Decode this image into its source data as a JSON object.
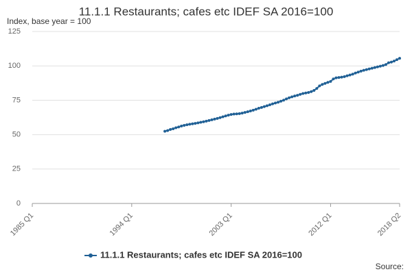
{
  "chart_data": {
    "type": "line",
    "title": "11.1.1 Restaurants; cafes etc IDEF SA 2016=100",
    "subtitle": "Index, base year = 100",
    "source": "Source:",
    "categories": [
      "1985 Q1",
      null,
      null,
      null,
      null,
      null,
      null,
      null,
      null,
      null,
      null,
      null,
      null,
      null,
      null,
      null,
      null,
      null,
      null,
      null,
      null,
      null,
      null,
      null,
      null,
      null,
      null,
      null,
      null,
      null,
      null,
      null,
      null,
      null,
      null,
      null,
      "1994 Q1",
      null,
      null,
      null,
      null,
      null,
      null,
      null,
      null,
      null,
      null,
      null,
      null,
      null,
      null,
      null,
      null,
      null,
      null,
      null,
      null,
      null,
      null,
      null,
      null,
      null,
      null,
      null,
      null,
      null,
      null,
      null,
      null,
      null,
      null,
      null,
      "2003 Q1",
      null,
      null,
      null,
      null,
      null,
      null,
      null,
      null,
      null,
      null,
      null,
      null,
      null,
      null,
      null,
      null,
      null,
      null,
      null,
      null,
      null,
      null,
      null,
      null,
      null,
      null,
      null,
      null,
      null,
      null,
      null,
      null,
      null,
      null,
      null,
      "2012 Q1",
      null,
      null,
      null,
      null,
      null,
      null,
      null,
      null,
      null,
      null,
      null,
      null,
      null,
      null,
      null,
      null,
      null,
      null,
      null,
      null,
      null,
      null,
      null,
      null,
      "2018 Q2"
    ],
    "series": [
      {
        "name": "11.1.1 Restaurants; cafes etc IDEF SA 2016=100",
        "color": "#206095",
        "values": [
          null,
          null,
          null,
          null,
          null,
          null,
          null,
          null,
          null,
          null,
          null,
          null,
          null,
          null,
          null,
          null,
          null,
          null,
          null,
          null,
          null,
          null,
          null,
          null,
          null,
          null,
          null,
          null,
          null,
          null,
          null,
          null,
          null,
          null,
          null,
          null,
          null,
          null,
          null,
          null,
          null,
          null,
          null,
          null,
          null,
          null,
          null,
          null,
          52.5,
          53,
          53.8,
          54.3,
          55,
          55.6,
          56.3,
          56.8,
          57.2,
          57.6,
          57.9,
          58.2,
          58.6,
          59,
          59.4,
          59.8,
          60.3,
          60.8,
          61.3,
          61.8,
          62.4,
          63,
          63.6,
          64.2,
          64.7,
          65,
          65.1,
          65.3,
          65.7,
          66.2,
          66.7,
          67.2,
          67.8,
          68.5,
          69.2,
          69.8,
          70.4,
          71,
          71.7,
          72.4,
          73,
          73.6,
          74.3,
          75.1,
          76,
          76.8,
          77.5,
          78.1,
          78.6,
          79.3,
          79.9,
          80.3,
          80.7,
          81.3,
          82.2,
          83.6,
          85.5,
          86.5,
          87.3,
          88,
          88.7,
          90.5,
          91.3,
          91.6,
          91.8,
          92.2,
          92.8,
          93.4,
          94,
          94.8,
          95.5,
          96.2,
          96.8,
          97.3,
          97.8,
          98.3,
          98.8,
          99.3,
          99.8,
          100.3,
          101,
          102.3,
          102.8,
          103.5,
          104.5,
          105.5
        ]
      }
    ],
    "ylim": [
      0,
      125
    ],
    "yticks": [
      0,
      25,
      50,
      75,
      100,
      125
    ],
    "grid": true
  }
}
